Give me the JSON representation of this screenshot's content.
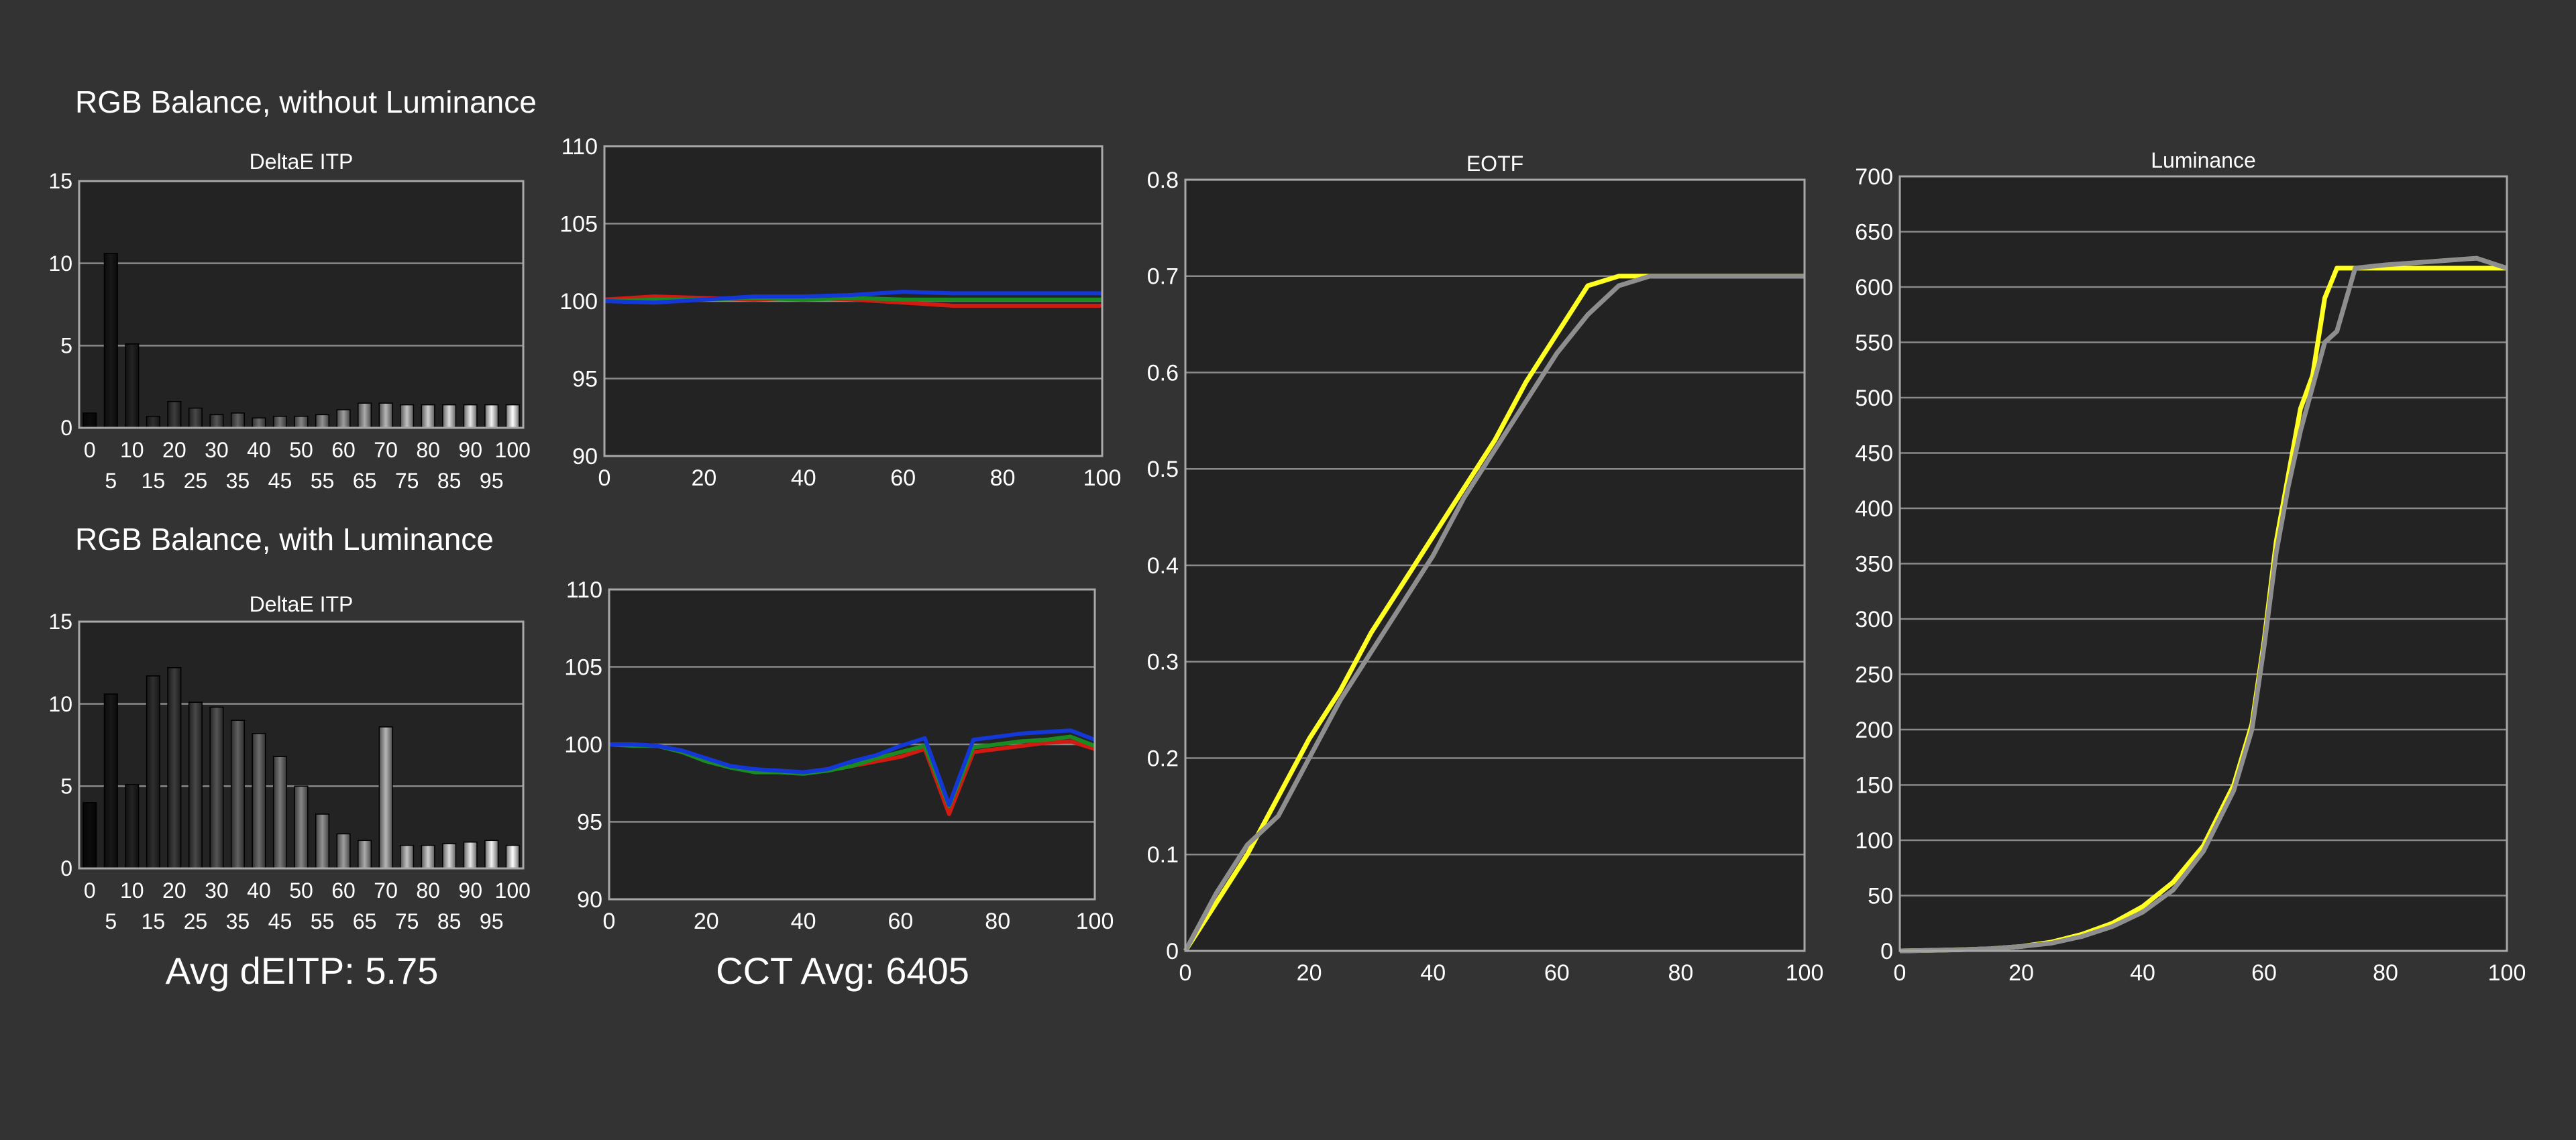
{
  "sections": {
    "without_luminance": "RGB Balance, without Luminance",
    "with_luminance": "RGB Balance, with Luminance"
  },
  "summary": {
    "avg_deitp": "Avg dEITP: 5.75",
    "cct_avg": "CCT Avg: 6405"
  },
  "colors": {
    "background": "#333333",
    "plot_bg": "#232323",
    "grid": "#8a8a8a",
    "red": "#d01a12",
    "green": "#1a8a22",
    "blue": "#1438d8",
    "target": "#ffff22",
    "measured": "#8e8e8e"
  },
  "chart_data": [
    {
      "id": "deltae_without",
      "type": "bar",
      "title": "DeltaE ITP",
      "categories": [
        "0",
        "5",
        "10",
        "15",
        "20",
        "25",
        "30",
        "35",
        "40",
        "45",
        "50",
        "55",
        "60",
        "65",
        "70",
        "75",
        "80",
        "85",
        "90",
        "95",
        "100"
      ],
      "values": [
        0.9,
        10.6,
        5.1,
        0.7,
        1.6,
        1.2,
        0.8,
        0.9,
        0.6,
        0.7,
        0.7,
        0.8,
        1.1,
        1.5,
        1.5,
        1.4,
        1.4,
        1.4,
        1.4,
        1.4,
        1.4
      ],
      "ylim": [
        0,
        15
      ],
      "yticks": [
        "0",
        "5",
        "10",
        "15"
      ],
      "xticks_top": [
        "0",
        "10",
        "20",
        "30",
        "40",
        "50",
        "60",
        "70",
        "80",
        "90",
        "100"
      ],
      "xticks_bottom": [
        "5",
        "15",
        "25",
        "35",
        "45",
        "55",
        "65",
        "75",
        "85",
        "95"
      ]
    },
    {
      "id": "rgb_without",
      "type": "line",
      "xlim": [
        0,
        100
      ],
      "ylim": [
        90,
        110
      ],
      "xticks": [
        "0",
        "20",
        "40",
        "60",
        "80",
        "100"
      ],
      "yticks": [
        "90",
        "95",
        "100",
        "105",
        "110"
      ],
      "x": [
        0,
        10,
        20,
        30,
        40,
        50,
        60,
        70,
        80,
        90,
        100
      ],
      "series": [
        {
          "color": "red",
          "values": [
            100.1,
            100.3,
            100.2,
            100.1,
            100.2,
            100.1,
            99.9,
            99.7,
            99.7,
            99.7,
            99.7
          ]
        },
        {
          "color": "green",
          "values": [
            100.0,
            100.1,
            100.1,
            100.2,
            100.1,
            100.2,
            100.1,
            100.1,
            100.1,
            100.1,
            100.1
          ]
        },
        {
          "color": "blue",
          "values": [
            100.0,
            99.9,
            100.1,
            100.3,
            100.3,
            100.4,
            100.6,
            100.5,
            100.5,
            100.5,
            100.5
          ]
        }
      ]
    },
    {
      "id": "deltae_with",
      "type": "bar",
      "title": "DeltaE ITP",
      "categories": [
        "0",
        "5",
        "10",
        "15",
        "20",
        "25",
        "30",
        "35",
        "40",
        "45",
        "50",
        "55",
        "60",
        "65",
        "70",
        "75",
        "80",
        "85",
        "90",
        "95",
        "100"
      ],
      "values": [
        4.0,
        10.6,
        5.1,
        11.7,
        12.2,
        10.1,
        9.8,
        9.0,
        8.2,
        6.8,
        5.0,
        3.3,
        2.1,
        1.7,
        8.6,
        1.4,
        1.4,
        1.5,
        1.6,
        1.7,
        1.4
      ],
      "ylim": [
        0,
        15
      ],
      "yticks": [
        "0",
        "5",
        "10",
        "15"
      ],
      "xticks_top": [
        "0",
        "10",
        "20",
        "30",
        "40",
        "50",
        "60",
        "70",
        "80",
        "90",
        "100"
      ],
      "xticks_bottom": [
        "5",
        "15",
        "25",
        "35",
        "45",
        "55",
        "65",
        "75",
        "85",
        "95"
      ]
    },
    {
      "id": "rgb_with",
      "type": "line",
      "xlim": [
        0,
        100
      ],
      "ylim": [
        90,
        110
      ],
      "xticks": [
        "0",
        "20",
        "40",
        "60",
        "80",
        "100"
      ],
      "yticks": [
        "90",
        "95",
        "100",
        "105",
        "110"
      ],
      "x": [
        0,
        5,
        10,
        15,
        20,
        25,
        30,
        35,
        40,
        45,
        50,
        55,
        60,
        65,
        70,
        75,
        80,
        85,
        90,
        95,
        100
      ],
      "series": [
        {
          "color": "red",
          "values": [
            100.0,
            100.0,
            99.9,
            99.5,
            99.1,
            98.6,
            98.3,
            98.3,
            98.2,
            98.4,
            98.6,
            98.9,
            99.2,
            99.7,
            95.5,
            99.5,
            99.7,
            99.9,
            100.1,
            100.2,
            99.7
          ]
        },
        {
          "color": "green",
          "values": [
            100.0,
            99.9,
            99.9,
            99.5,
            98.9,
            98.5,
            98.2,
            98.2,
            98.1,
            98.3,
            98.6,
            99.1,
            99.5,
            99.9,
            96.0,
            99.8,
            100.0,
            100.2,
            100.3,
            100.5,
            99.9
          ]
        },
        {
          "color": "blue",
          "values": [
            100.0,
            100.0,
            99.9,
            99.6,
            99.1,
            98.6,
            98.4,
            98.3,
            98.2,
            98.4,
            98.9,
            99.3,
            99.9,
            100.4,
            96.1,
            100.3,
            100.5,
            100.7,
            100.8,
            100.9,
            100.3
          ]
        }
      ]
    },
    {
      "id": "eotf",
      "type": "line",
      "title": "EOTF",
      "xlim": [
        0,
        100
      ],
      "ylim": [
        0,
        0.8
      ],
      "xticks": [
        "0",
        "20",
        "40",
        "60",
        "80",
        "100"
      ],
      "yticks": [
        "0",
        "0.1",
        "0.2",
        "0.3",
        "0.4",
        "0.5",
        "0.6",
        "0.7",
        "0.8"
      ],
      "x": [
        0,
        5,
        10,
        15,
        20,
        25,
        30,
        35,
        40,
        45,
        50,
        55,
        60,
        65,
        70,
        75,
        80,
        85,
        90,
        95,
        100
      ],
      "series": [
        {
          "name": "target",
          "color": "target",
          "values": [
            0.0,
            0.05,
            0.1,
            0.16,
            0.22,
            0.27,
            0.33,
            0.38,
            0.43,
            0.48,
            0.53,
            0.59,
            0.64,
            0.69,
            0.7,
            0.7,
            0.7,
            0.7,
            0.7,
            0.7,
            0.7
          ]
        },
        {
          "name": "measured",
          "color": "measured",
          "values": [
            0.0,
            0.06,
            0.11,
            0.14,
            0.2,
            0.26,
            0.31,
            0.36,
            0.41,
            0.47,
            0.52,
            0.57,
            0.62,
            0.66,
            0.69,
            0.7,
            0.7,
            0.7,
            0.7,
            0.7,
            0.7
          ]
        }
      ]
    },
    {
      "id": "luminance",
      "type": "line",
      "title": "Luminance",
      "xlim": [
        0,
        100
      ],
      "ylim": [
        0,
        700
      ],
      "xticks": [
        "0",
        "20",
        "40",
        "60",
        "80",
        "100"
      ],
      "yticks": [
        "0",
        "50",
        "100",
        "150",
        "200",
        "250",
        "300",
        "350",
        "400",
        "450",
        "500",
        "550",
        "600",
        "650",
        "700"
      ],
      "x": [
        0,
        5,
        10,
        15,
        20,
        25,
        30,
        35,
        40,
        45,
        50,
        55,
        58,
        60,
        62,
        64,
        66,
        68,
        70,
        72,
        75,
        80,
        85,
        90,
        95,
        100
      ],
      "series": [
        {
          "name": "target",
          "color": "target",
          "values": [
            0,
            0.5,
            1,
            2,
            4,
            8,
            15,
            25,
            40,
            62,
            95,
            150,
            205,
            280,
            370,
            430,
            490,
            520,
            590,
            617,
            617,
            617,
            617,
            617,
            617,
            617
          ]
        },
        {
          "name": "measured",
          "color": "measured",
          "values": [
            0,
            0.5,
            1,
            2,
            4,
            7,
            13,
            22,
            35,
            55,
            90,
            145,
            200,
            275,
            360,
            420,
            470,
            510,
            550,
            560,
            617,
            620,
            622,
            624,
            626,
            617
          ]
        }
      ]
    }
  ]
}
